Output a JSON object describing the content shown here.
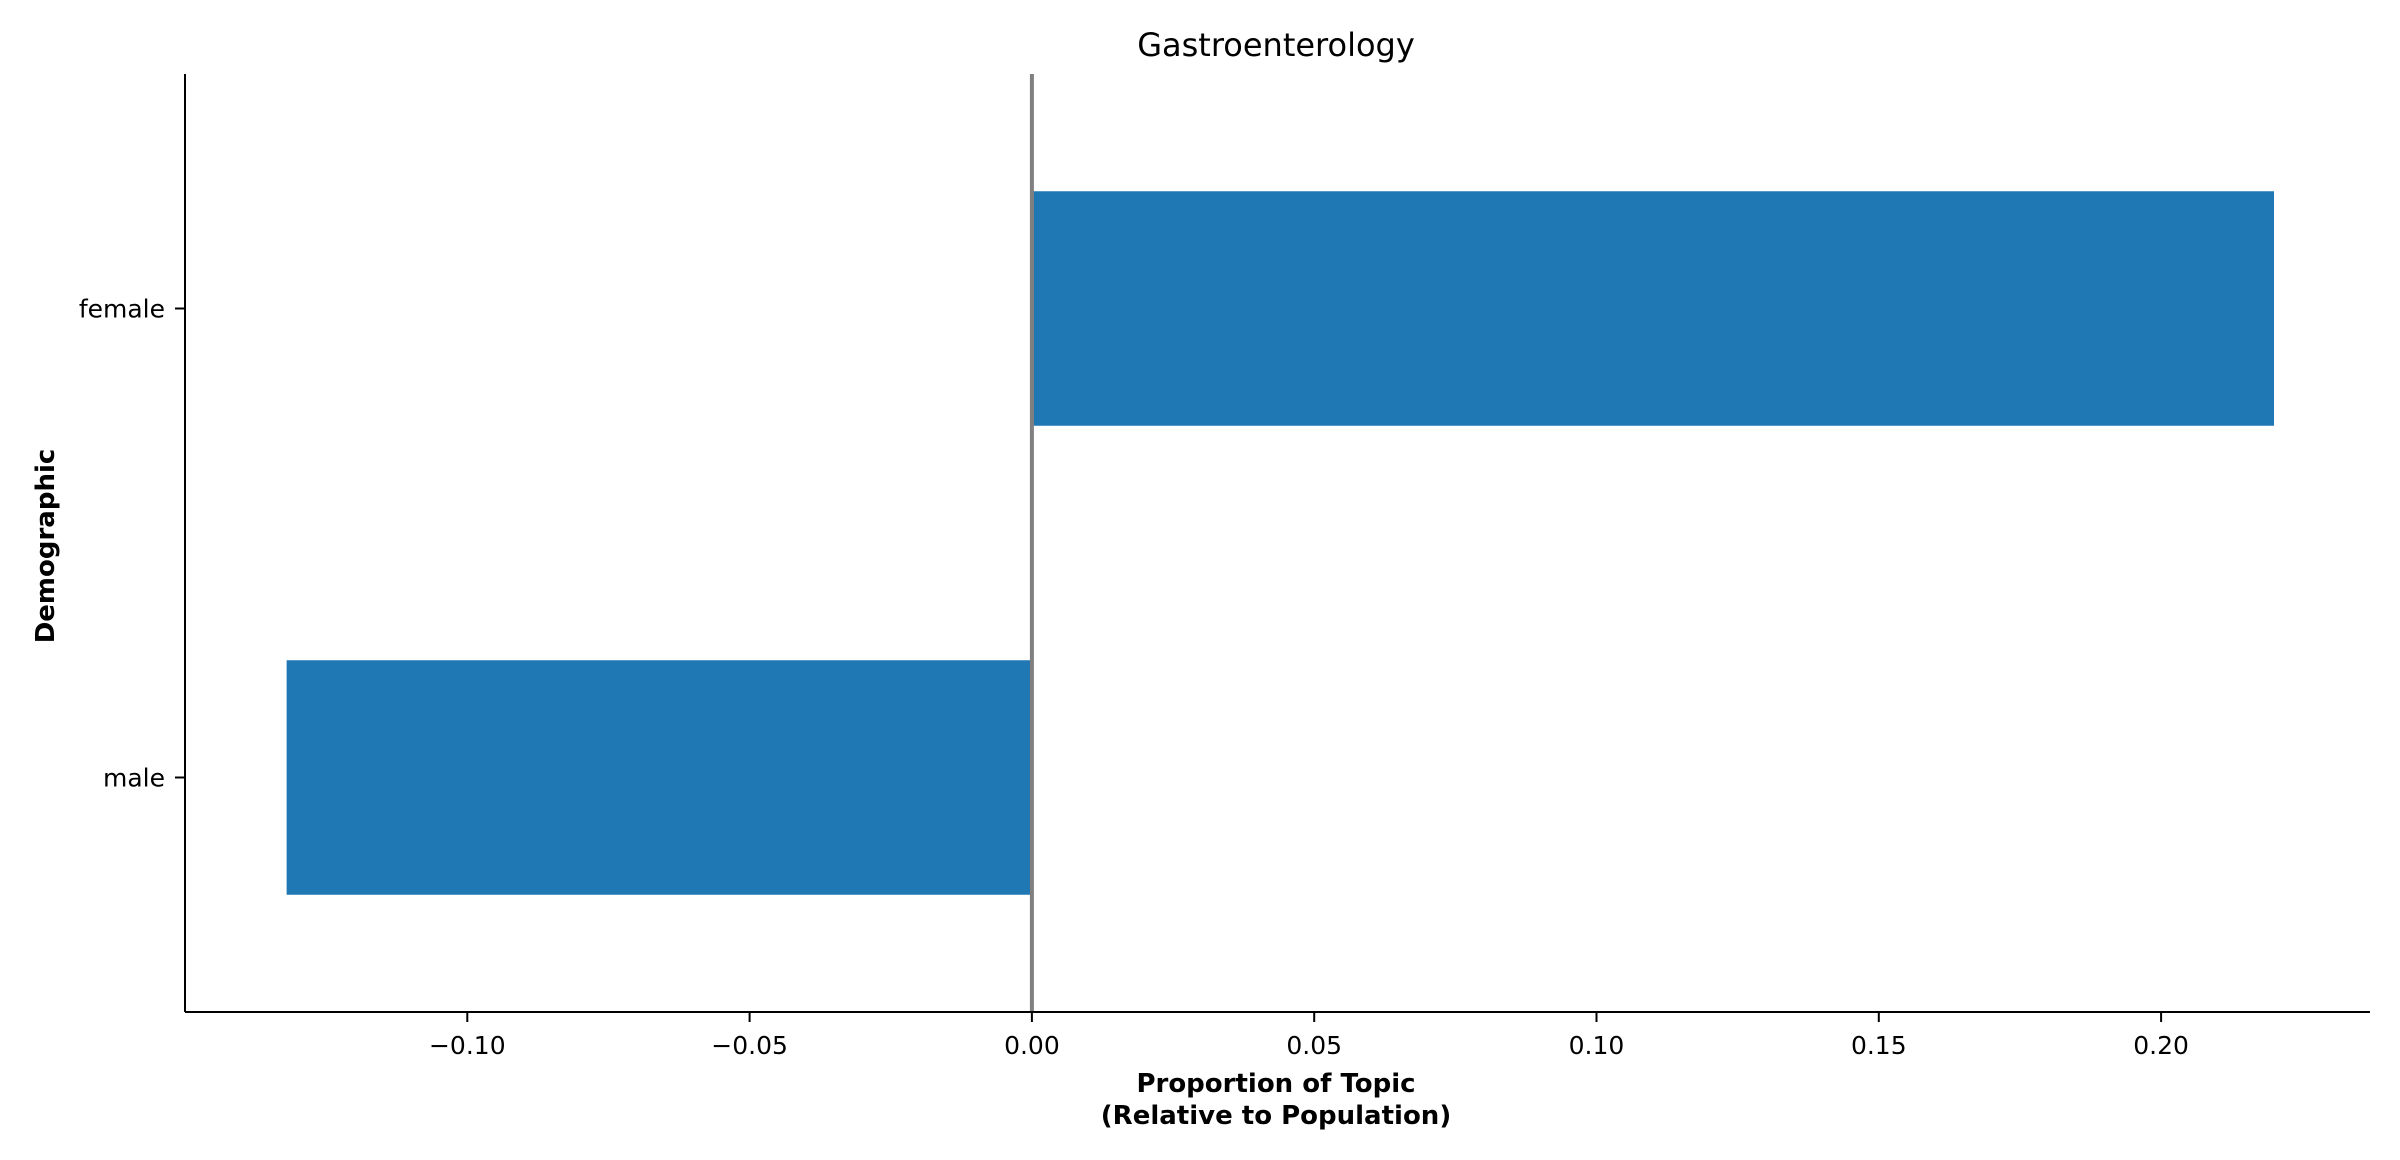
{
  "chart_data": {
    "type": "bar",
    "orientation": "horizontal",
    "title": "Gastroenterology",
    "xlabel": [
      "Proportion of Topic",
      "(Relative to Population)"
    ],
    "ylabel": "Demographic",
    "categories": [
      "female",
      "male"
    ],
    "values": [
      0.22,
      -0.132
    ],
    "xlim": [
      -0.15,
      0.237
    ],
    "xticks": [
      -0.1,
      -0.05,
      0.0,
      0.05,
      0.1,
      0.15,
      0.2
    ],
    "xtick_labels": [
      "−0.10",
      "−0.05",
      "0.00",
      "0.05",
      "0.10",
      "0.15",
      "0.20"
    ],
    "zero_line": true,
    "grid": false,
    "colors": {
      "bar": "#1f77b4",
      "zero_line": "#808080",
      "axis": "#000000"
    }
  }
}
